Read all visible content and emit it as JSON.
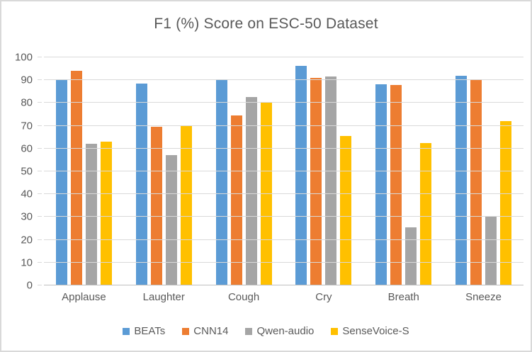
{
  "chart_data": {
    "type": "bar",
    "title": "F1 (%) Score on ESC-50 Dataset",
    "xlabel": "",
    "ylabel": "",
    "categories": [
      "Applause",
      "Laughter",
      "Cough",
      "Cry",
      "Breath",
      "Sneeze"
    ],
    "series": [
      {
        "name": "BEATs",
        "color": "#5B9BD5",
        "values": [
          90.5,
          88.5,
          90.5,
          96.3,
          88.3,
          92.0
        ]
      },
      {
        "name": "CNN14",
        "color": "#ED7D31",
        "values": [
          94.0,
          69.5,
          74.5,
          91.0,
          88.0,
          90.3
        ]
      },
      {
        "name": "Qwen-audio",
        "color": "#A5A5A5",
        "values": [
          62.0,
          57.0,
          82.5,
          91.7,
          25.5,
          30.0
        ]
      },
      {
        "name": "SenseVoice-S",
        "color": "#FFC000",
        "values": [
          63.0,
          70.0,
          80.5,
          65.5,
          62.5,
          72.0
        ]
      }
    ],
    "ylim": [
      0,
      100
    ],
    "ytick_step": 10,
    "ytick_labels": [
      "0",
      "10",
      "20",
      "30",
      "40",
      "50",
      "60",
      "70",
      "80",
      "90",
      "100"
    ],
    "grid": true,
    "legend_position": "bottom"
  },
  "style_colors": {
    "text": "#595959",
    "gridline": "#D9D9D9",
    "axis_line": "#BFBFBF",
    "frame_border": "#D9D9D9",
    "background": "#FFFFFF"
  }
}
